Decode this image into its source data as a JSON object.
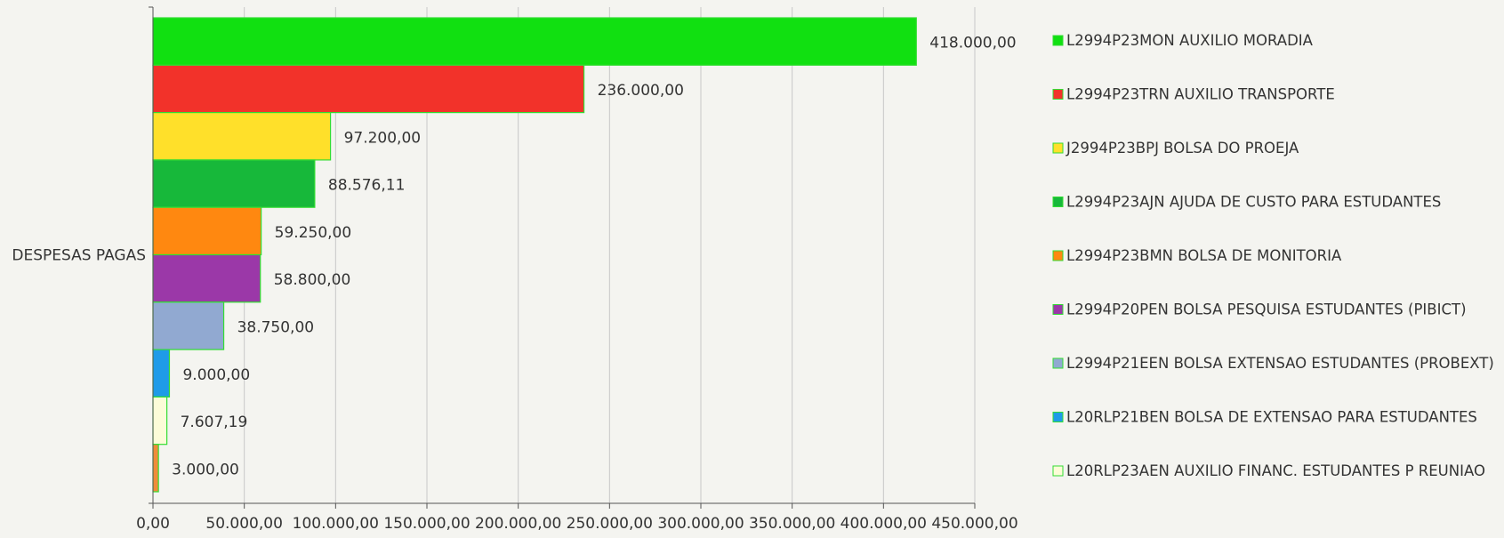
{
  "chart_data": {
    "type": "bar",
    "orientation": "horizontal",
    "category": "DESPESAS PAGAS",
    "xlim": [
      0,
      450000
    ],
    "grid": true,
    "legend_position": "right",
    "x_ticks": [
      {
        "value": 0,
        "label": "0,00"
      },
      {
        "value": 50000,
        "label": "50.000,00"
      },
      {
        "value": 100000,
        "label": "100.000,00"
      },
      {
        "value": 150000,
        "label": "150.000,00"
      },
      {
        "value": 200000,
        "label": "200.000,00"
      },
      {
        "value": 250000,
        "label": "250.000,00"
      },
      {
        "value": 300000,
        "label": "300.000,00"
      },
      {
        "value": 350000,
        "label": "350.000,00"
      },
      {
        "value": 400000,
        "label": "400.000,00"
      },
      {
        "value": 450000,
        "label": "450.000,00"
      }
    ],
    "series": [
      {
        "name": "L2994P23MON AUXILIO MORADIA",
        "value": 418000.0,
        "label": "418.000,00",
        "color": "#11e011"
      },
      {
        "name": "L2994P23TRN AUXILIO TRANSPORTE",
        "value": 236000.0,
        "label": "236.000,00",
        "color": "#f2322a"
      },
      {
        "name": "J2994P23BPJ BOLSA DO PROEJA",
        "value": 97200.0,
        "label": "97.200,00",
        "color": "#ffe02a"
      },
      {
        "name": "L2994P23AJN AJUDA DE CUSTO PARA ESTUDANTES",
        "value": 88576.11,
        "label": "88.576,11",
        "color": "#17b83a"
      },
      {
        "name": "L2994P23BMN BOLSA DE MONITORIA",
        "value": 59250.0,
        "label": "59.250,00",
        "color": "#ff8810"
      },
      {
        "name": "L2994P20PEN BOLSA PESQUISA ESTUDANTES (PIBICT)",
        "value": 58800.0,
        "label": "58.800,00",
        "color": "#9b38a8"
      },
      {
        "name": "L2994P21EEN BOLSA EXTENSAO ESTUDANTES (PROBEXT)",
        "value": 38750.0,
        "label": "38.750,00",
        "color": "#91a9d1"
      },
      {
        "name": "L20RLP21BEN BOLSA DE EXTENSAO PARA ESTUDANTES",
        "value": 9000.0,
        "label": "9.000,00",
        "color": "#1f9be8"
      },
      {
        "name": "L20RLP23AEN AUXILIO FINANC. ESTUDANTES P REUNIAO",
        "value": 7607.19,
        "label": "7.607,19",
        "color": "#fcfcd8"
      },
      {
        "name": "",
        "value": 3000.0,
        "label": "3.000,00",
        "color": "#f08c3a"
      }
    ],
    "bar_outline_color": "#33dd33",
    "grid_color": "#c8c8c8",
    "axis_color": "#555555"
  }
}
